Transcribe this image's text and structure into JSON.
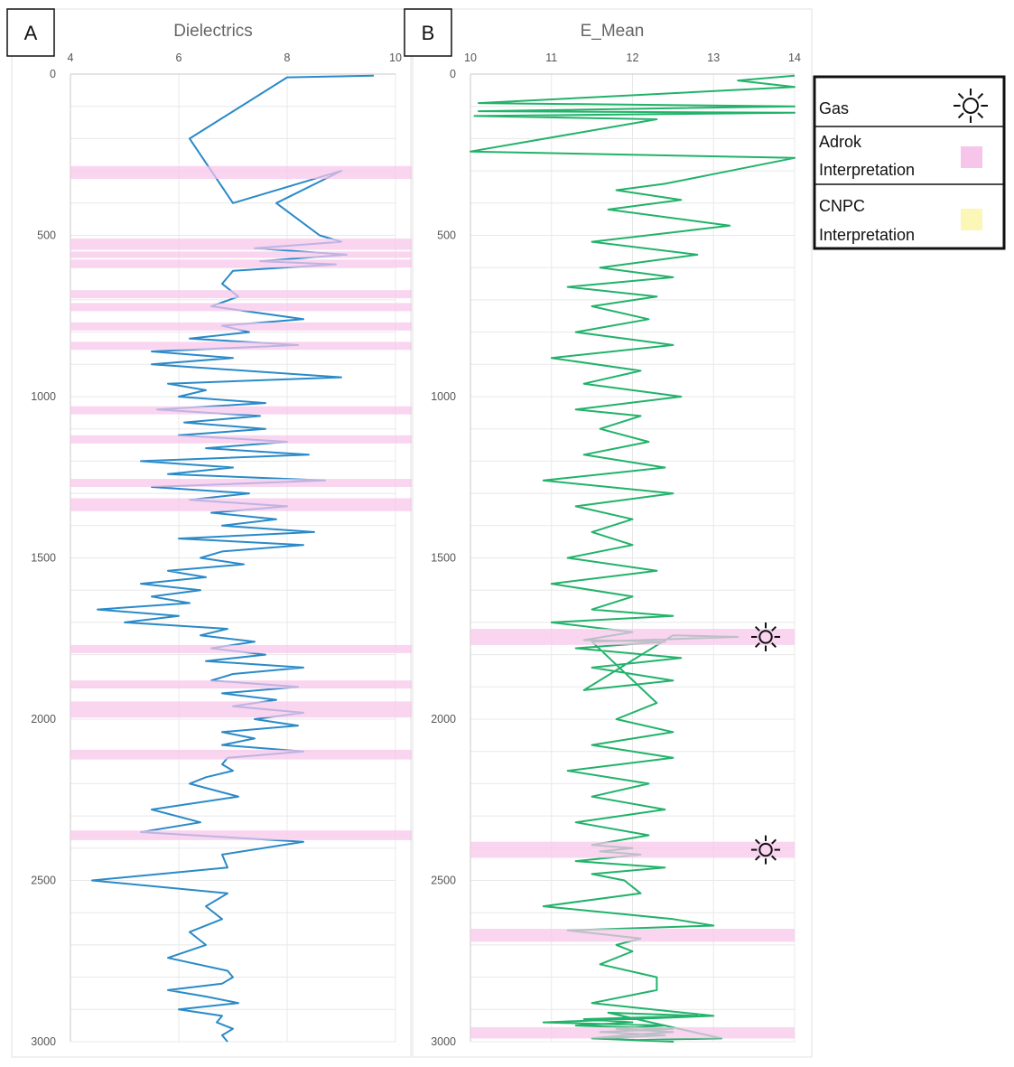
{
  "colors": {
    "dielectric_line": "#2a8ac8",
    "emean_line": "#22b26a",
    "adrok_band": "#f8c5ea",
    "cnpc_band": "#fbf7b6",
    "grid": "#e8e8e8",
    "panel_border": "#dddddd"
  },
  "legend": [
    {
      "label": "Gas",
      "icon": "sun-icon"
    },
    {
      "label": "Adrok Interpretation",
      "swatch": "#f8c5ea"
    },
    {
      "label": "CNPC Interpretation",
      "swatch": "#fbf7b6"
    }
  ],
  "chart_data": [
    {
      "type": "line",
      "panel_label": "A",
      "title": "Dielectrics",
      "xlim": [
        4,
        10
      ],
      "xticks": [
        "4",
        "6",
        "8",
        "10"
      ],
      "ylim": [
        0,
        3000
      ],
      "y_inverted": true,
      "yticks": [
        "0",
        "500",
        "1000",
        "1500",
        "2000",
        "2500",
        "3000"
      ],
      "grid": true,
      "series": [
        {
          "x": [
            9.6,
            8.0,
            6.2,
            7.0,
            9.0,
            7.8,
            8.6,
            9.0,
            7.4,
            9.1,
            7.5,
            8.9,
            7.0,
            6.8,
            7.1,
            6.6,
            8.3,
            6.8,
            7.3,
            6.2,
            8.2,
            5.5,
            7.0,
            5.5,
            9.0,
            5.8,
            6.5,
            6.0,
            7.6,
            5.6,
            7.5,
            6.1,
            7.6,
            6.0,
            8.0,
            6.5,
            8.4,
            5.3,
            7.0,
            5.8,
            8.7,
            5.5,
            7.3,
            6.2,
            8.0,
            6.6,
            7.8,
            6.8,
            8.5,
            6.0,
            8.3,
            6.8,
            6.4,
            7.2,
            5.8,
            6.5,
            5.3,
            6.4,
            5.5,
            6.2,
            4.5,
            6.0,
            5.0,
            6.9,
            6.4,
            7.4,
            6.6,
            7.6,
            6.5,
            8.3,
            7.0,
            6.6,
            8.2,
            6.8,
            7.8,
            7.0,
            8.3,
            7.4,
            8.2,
            6.8,
            7.4,
            6.8,
            8.3,
            6.9,
            6.8,
            7.0,
            6.5,
            6.2,
            7.1,
            5.5,
            6.4,
            5.3,
            8.3,
            6.8,
            6.9,
            4.4,
            6.9,
            6.5,
            6.8,
            6.2,
            6.5,
            5.8,
            6.9,
            7.0,
            6.8,
            5.8,
            6.5,
            7.1,
            6.0,
            6.8,
            6.7,
            7.0,
            6.8,
            6.9
          ],
          "y": [
            5,
            10,
            200,
            400,
            300,
            400,
            500,
            520,
            540,
            560,
            580,
            590,
            610,
            650,
            690,
            720,
            760,
            780,
            800,
            820,
            840,
            860,
            880,
            900,
            940,
            960,
            980,
            1000,
            1020,
            1040,
            1060,
            1080,
            1100,
            1120,
            1140,
            1160,
            1180,
            1200,
            1220,
            1240,
            1260,
            1280,
            1300,
            1320,
            1340,
            1360,
            1380,
            1400,
            1420,
            1440,
            1460,
            1480,
            1500,
            1520,
            1540,
            1560,
            1580,
            1600,
            1620,
            1640,
            1660,
            1680,
            1700,
            1720,
            1740,
            1760,
            1780,
            1800,
            1820,
            1840,
            1860,
            1880,
            1900,
            1920,
            1940,
            1960,
            1980,
            2000,
            2020,
            2040,
            2060,
            2080,
            2100,
            2120,
            2140,
            2160,
            2180,
            2200,
            2240,
            2280,
            2320,
            2350,
            2380,
            2420,
            2460,
            2500,
            2540,
            2580,
            2620,
            2660,
            2700,
            2740,
            2780,
            2800,
            2820,
            2840,
            2860,
            2880,
            2900,
            2920,
            2940,
            2960,
            2980,
            3000
          ]
        }
      ],
      "adrok_bands": [
        [
          285,
          325
        ],
        [
          510,
          545
        ],
        [
          550,
          570
        ],
        [
          575,
          600
        ],
        [
          670,
          695
        ],
        [
          710,
          735
        ],
        [
          770,
          795
        ],
        [
          830,
          855
        ],
        [
          1030,
          1055
        ],
        [
          1120,
          1145
        ],
        [
          1255,
          1280
        ],
        [
          1315,
          1355
        ],
        [
          1770,
          1795
        ],
        [
          1880,
          1905
        ],
        [
          1945,
          1995
        ],
        [
          2095,
          2125
        ],
        [
          2345,
          2375
        ]
      ]
    },
    {
      "type": "line",
      "panel_label": "B",
      "title": "E_Mean",
      "xlim": [
        10,
        14
      ],
      "xticks": [
        "10",
        "11",
        "12",
        "13",
        "14"
      ],
      "ylim": [
        0,
        3000
      ],
      "y_inverted": true,
      "yticks": [
        "0",
        "500",
        "1000",
        "1500",
        "2000",
        "2500",
        "3000"
      ],
      "grid": true,
      "series": [
        {
          "x": [
            14,
            13.3,
            14,
            10.1,
            14,
            10.1,
            14,
            10.05,
            12.3,
            10.0,
            14,
            13.0,
            12.4,
            11.8,
            12.6,
            11.7,
            13.2,
            11.5,
            12.8,
            11.6,
            12.5,
            11.2,
            12.3,
            11.5,
            12.2,
            11.3,
            12.5,
            11.0,
            12.1,
            11.4,
            12.6,
            11.3,
            12.1,
            11.6,
            12.2,
            11.4,
            12.4,
            10.9,
            12.5,
            11.3,
            12.0,
            11.5,
            12.0,
            11.2,
            12.3,
            11.0,
            12.0,
            11.5,
            12.5,
            11.0,
            12.0,
            11.4,
            12.4,
            11.3,
            12.6,
            11.5,
            12.5,
            11.4,
            12.5,
            13.3,
            11.5,
            12.3,
            11.8,
            12.5,
            11.5,
            12.5,
            11.2,
            12.2,
            11.5,
            12.4,
            11.3,
            12.2,
            11.5,
            12.0,
            11.6,
            12.1,
            11.3,
            12.4,
            11.5,
            11.9,
            12.1,
            10.9,
            12.5,
            13.0,
            11.2,
            12.1,
            11.8,
            12.0,
            11.6,
            12.3,
            12.3,
            11.5,
            13.0,
            10.9,
            12.4,
            11.8,
            12.5,
            11.9,
            11.5,
            12.5,
            11.6,
            12.4,
            11.6,
            12.5,
            11.3,
            12.0,
            11.4,
            12.8,
            12.3,
            11.7,
            13.1,
            12.0
          ],
          "y": [
            5,
            20,
            40,
            90,
            100,
            115,
            120,
            130,
            140,
            240,
            260,
            310,
            340,
            360,
            390,
            420,
            470,
            520,
            560,
            600,
            630,
            660,
            690,
            720,
            760,
            800,
            840,
            880,
            920,
            960,
            1000,
            1040,
            1060,
            1100,
            1140,
            1180,
            1220,
            1260,
            1300,
            1340,
            1380,
            1420,
            1460,
            1500,
            1540,
            1580,
            1620,
            1660,
            1680,
            1700,
            1730,
            1755,
            1760,
            1780,
            1810,
            1840,
            1880,
            1910,
            1740,
            1745,
            1760,
            1950,
            2000,
            2040,
            2080,
            2120,
            2160,
            2200,
            2240,
            2280,
            2320,
            2360,
            2390,
            2400,
            2410,
            2420,
            2440,
            2460,
            2480,
            2500,
            2540,
            2580,
            2620,
            2640,
            2655,
            2680,
            2700,
            2720,
            2760,
            2800,
            2840,
            2880,
            2920,
            2940,
            2950,
            2960,
            2970,
            2980,
            2990,
            3000,
            2990,
            2980,
            2970,
            2960,
            2950,
            2940,
            2930,
            2920,
            2915,
            2910,
            2990,
            2995
          ]
        }
      ],
      "adrok_bands": [
        [
          1720,
          1770
        ],
        [
          2380,
          2430
        ],
        [
          2650,
          2690
        ],
        [
          2955,
          2990
        ]
      ],
      "gas_markers": [
        1745,
        2405
      ]
    }
  ]
}
